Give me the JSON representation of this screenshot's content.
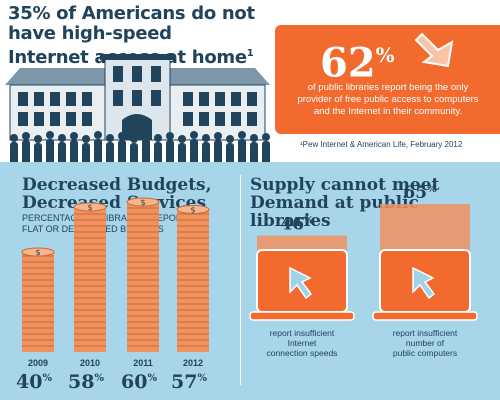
{
  "header": {
    "headline_line1": "35% of Americans do not have high-speed",
    "headline_line2": "Internet access at home",
    "footnote_mark": "1"
  },
  "callout": {
    "value": "62",
    "unit": "%",
    "text_line1": "of public libraries report being the only",
    "text_line2": "provider of free public access to computers",
    "text_line3": "and the Internet in their community."
  },
  "source": "¹Pew Internet & American Life, February 2012",
  "left_panel": {
    "title_line1": "Decreased Budgets,",
    "title_line2": "Decreased Services",
    "subtitle_line1": "Percentage of libraries reporting",
    "subtitle_line2": "flat or decreased budgets"
  },
  "right_panel": {
    "title_line1": "Supply cannot meet",
    "title_line2": "Demand at public",
    "title_line3": "libraries"
  },
  "colors": {
    "orange": "#f26a2e",
    "navy": "#21445c",
    "light_blue": "#a7d5ea",
    "coin": "#f0915e"
  },
  "chart_data": [
    {
      "type": "bar",
      "categories": [
        "2009",
        "2010",
        "2011",
        "2012"
      ],
      "values": [
        40,
        58,
        60,
        57
      ],
      "value_labels": [
        "40",
        "58",
        "60",
        "57"
      ],
      "unit": "%",
      "ylim": [
        0,
        60
      ]
    },
    {
      "type": "bar",
      "categories": [
        "report insufficient Internet connection speeds",
        "report insufficient number of public computers"
      ],
      "category_lines": [
        [
          "report insufficient",
          "Internet",
          "connection speeds"
        ],
        [
          "report insufficient",
          "number of",
          "public computers"
        ]
      ],
      "values": [
        46,
        65
      ],
      "value_labels": [
        "46",
        "65"
      ],
      "unit": "%",
      "ylim": [
        0,
        65
      ]
    }
  ]
}
